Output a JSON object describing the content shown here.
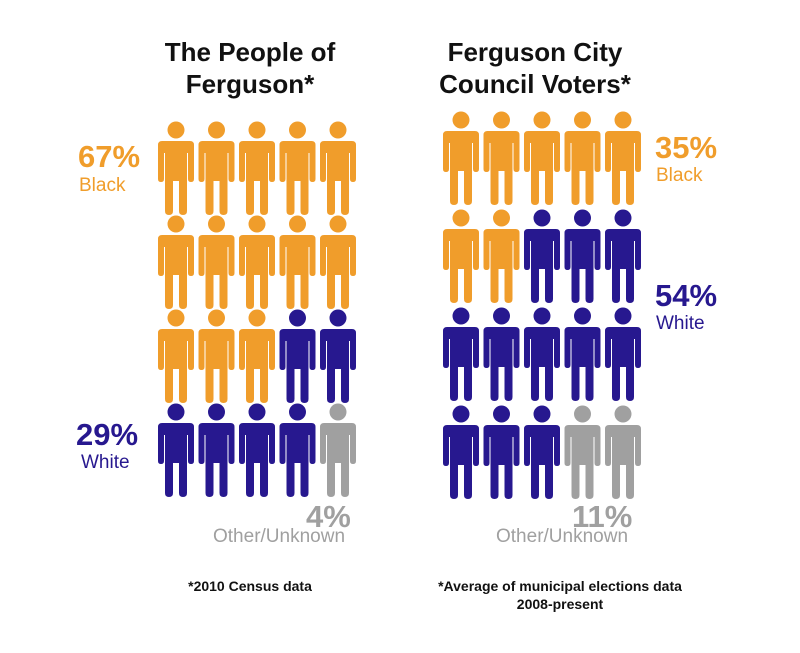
{
  "colors": {
    "black": "#F09D2B",
    "white": "#27188F",
    "other": "#A0A0A0"
  },
  "chart_data": [
    {
      "type": "pictograph",
      "title_line1": "The People of",
      "title_line2": "Ferguson*",
      "icons_per_row": 5,
      "icon_counts": {
        "black": 13,
        "white": 6,
        "other": 1
      },
      "series": [
        {
          "name": "Black",
          "value": 67,
          "value_label": "67%",
          "color": "#F09D2B"
        },
        {
          "name": "White",
          "value": 29,
          "value_label": "29%",
          "color": "#27188F"
        },
        {
          "name": "Other/Unknown",
          "value": 4,
          "value_label": "4%",
          "color": "#A0A0A0"
        }
      ],
      "footnote": "*2010 Census data"
    },
    {
      "type": "pictograph",
      "title_line1": "Ferguson City",
      "title_line2": "Council Voters*",
      "icons_per_row": 5,
      "icon_counts": {
        "black": 7,
        "white": 11,
        "other": 2
      },
      "series": [
        {
          "name": "Black",
          "value": 35,
          "value_label": "35%",
          "color": "#F09D2B"
        },
        {
          "name": "White",
          "value": 54,
          "value_label": "54%",
          "color": "#27188F"
        },
        {
          "name": "Other/Unknown",
          "value": 11,
          "value_label": "11%",
          "color": "#A0A0A0"
        }
      ],
      "footnote_line1": "*Average of municipal elections data",
      "footnote_line2": "2008-present"
    }
  ]
}
